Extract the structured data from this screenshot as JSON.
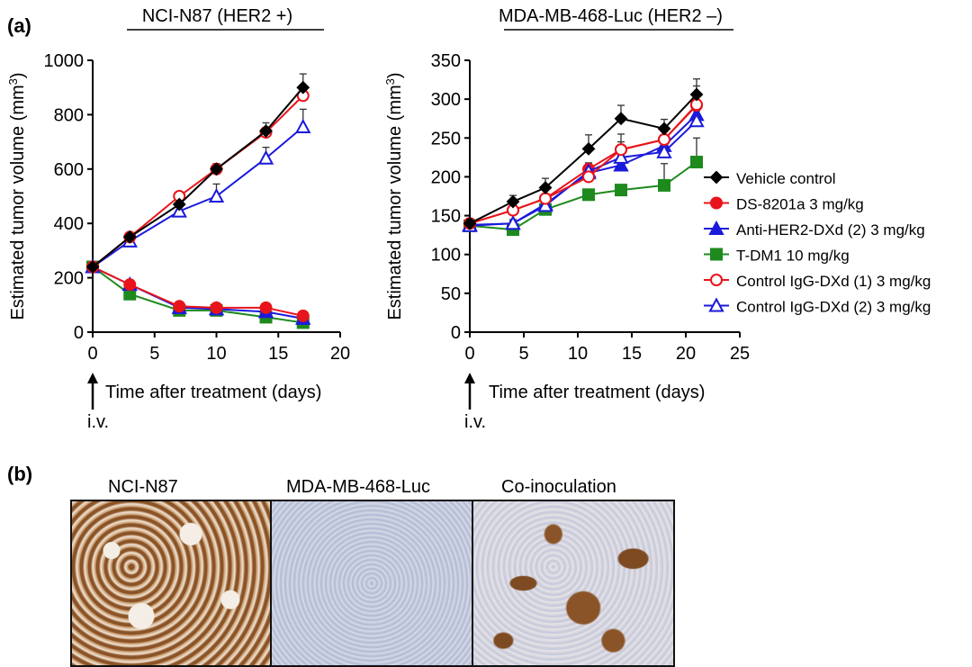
{
  "figure": {
    "panel_a_label": "(a)",
    "panel_b_label": "(b)",
    "iv_label": "i.v.",
    "micrograph_titles": [
      "NCI-N87",
      "MDA-MB-468-Luc",
      "Co-inoculation"
    ]
  },
  "legend": [
    "Vehicle control",
    "DS-8201a 3 mg/kg",
    "Anti-HER2-DXd (2) 3 mg/kg",
    "T-DM1 10 mg/kg",
    "Control IgG-DXd (1) 3 mg/kg",
    "Control IgG-DXd (2) 3 mg/kg"
  ],
  "series_style": [
    {
      "color": "#000000",
      "marker": "diamond",
      "filled": true
    },
    {
      "color": "#e8141b",
      "marker": "circle",
      "filled": true
    },
    {
      "color": "#1a1adb",
      "marker": "triangle",
      "filled": true
    },
    {
      "color": "#1e8a1e",
      "marker": "square",
      "filled": true
    },
    {
      "color": "#e8141b",
      "marker": "circle",
      "filled": false
    },
    {
      "color": "#1a1adb",
      "marker": "triangle",
      "filled": false
    }
  ],
  "chart_data": [
    {
      "type": "line",
      "title": "NCI-N87 (HER2 +)",
      "xlabel": "Time after treatment (days)",
      "ylabel": "Estimated tumor volume (mm3)",
      "xlim": [
        0,
        20
      ],
      "ylim": [
        0,
        1000
      ],
      "xticks": [
        0,
        5,
        10,
        15,
        20
      ],
      "yticks": [
        0,
        200,
        400,
        600,
        800,
        1000
      ],
      "x": [
        0,
        3,
        7,
        10,
        14,
        17
      ],
      "series": [
        {
          "name": "Vehicle control",
          "values": [
            240,
            350,
            470,
            600,
            740,
            900
          ],
          "err": [
            0,
            10,
            10,
            10,
            30,
            50
          ]
        },
        {
          "name": "DS-8201a 3 mg/kg",
          "values": [
            240,
            175,
            95,
            90,
            90,
            60
          ],
          "err": [
            0,
            5,
            5,
            5,
            5,
            5
          ]
        },
        {
          "name": "Anti-HER2-DXd (2) 3 mg/kg",
          "values": [
            240,
            175,
            90,
            85,
            75,
            50
          ],
          "err": [
            0,
            5,
            5,
            5,
            5,
            5
          ]
        },
        {
          "name": "T-DM1 10 mg/kg",
          "values": [
            240,
            140,
            80,
            80,
            55,
            35
          ],
          "err": [
            0,
            5,
            5,
            5,
            5,
            5
          ]
        },
        {
          "name": "Control IgG-DXd (1) 3 mg/kg",
          "values": [
            240,
            350,
            500,
            600,
            735,
            870
          ],
          "err": [
            0,
            5,
            5,
            20,
            10,
            10
          ]
        },
        {
          "name": "Control IgG-DXd (2) 3 mg/kg",
          "values": [
            240,
            335,
            445,
            500,
            640,
            755
          ],
          "err": [
            0,
            5,
            5,
            45,
            40,
            65
          ]
        }
      ]
    },
    {
      "type": "line",
      "title": "MDA-MB-468-Luc (HER2 –)",
      "xlabel": "Time after treatment (days)",
      "ylabel": "Estimated tumor volume (mm3)",
      "xlim": [
        0,
        25
      ],
      "ylim": [
        0,
        350
      ],
      "xticks": [
        0,
        5,
        10,
        15,
        20,
        25
      ],
      "yticks": [
        0,
        50,
        100,
        150,
        200,
        250,
        300,
        350
      ],
      "x": [
        0,
        4,
        7,
        11,
        14,
        18,
        21
      ],
      "series": [
        {
          "name": "Vehicle control",
          "values": [
            140,
            168,
            186,
            236,
            275,
            262,
            306
          ],
          "err": [
            5,
            8,
            12,
            18,
            17,
            12,
            20
          ]
        },
        {
          "name": "DS-8201a 3 mg/kg",
          "values": [
            140,
            157,
            172,
            210,
            235,
            248,
            292
          ],
          "err": [
            5,
            5,
            5,
            8,
            20,
            10,
            25
          ]
        },
        {
          "name": "Anti-HER2-DXd (2) 3 mg/kg",
          "values": [
            138,
            140,
            165,
            205,
            215,
            240,
            280
          ],
          "err": [
            5,
            5,
            5,
            5,
            30,
            5,
            5
          ]
        },
        {
          "name": "T-DM1 10 mg/kg",
          "values": [
            137,
            132,
            158,
            177,
            183,
            189,
            219
          ],
          "err": [
            3,
            3,
            3,
            3,
            3,
            28,
            31
          ]
        },
        {
          "name": "Control IgG-DXd (1) 3 mg/kg",
          "values": [
            140,
            157,
            172,
            200,
            235,
            248,
            293
          ],
          "err": [
            5,
            5,
            5,
            5,
            5,
            5,
            5
          ]
        },
        {
          "name": "Control IgG-DXd (2) 3 mg/kg",
          "values": [
            137,
            140,
            163,
            207,
            225,
            232,
            272
          ],
          "err": [
            3,
            3,
            3,
            3,
            3,
            3,
            3
          ]
        }
      ]
    }
  ]
}
